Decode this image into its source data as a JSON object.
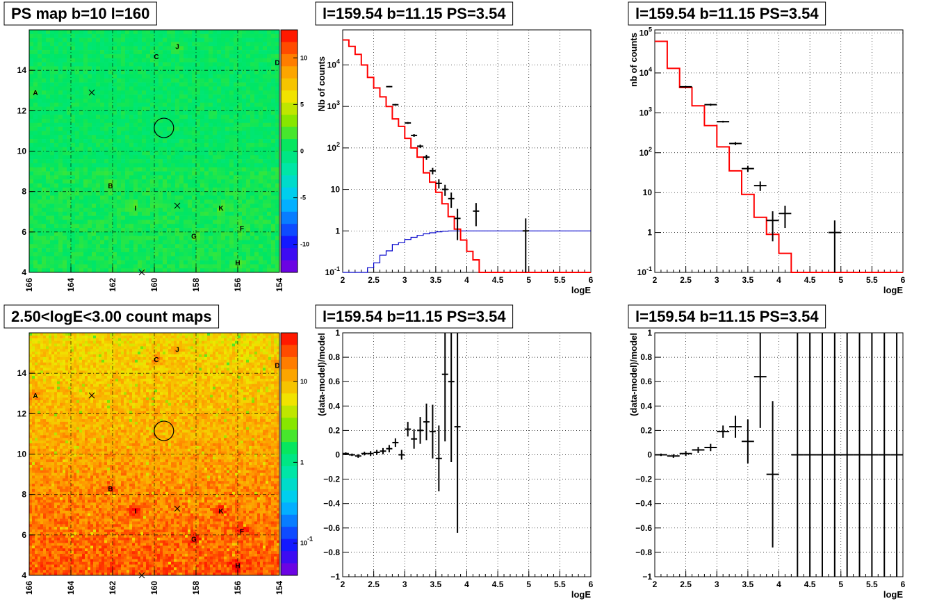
{
  "colors": {
    "data": "#000000",
    "model": "#ff0000",
    "component": "#0000cc",
    "grid": "#000000"
  },
  "chart_data": [
    {
      "id": "ps-map",
      "type": "heatmap",
      "title": "PS map b=10 l=160",
      "xlim": [
        166,
        154
      ],
      "ylim": [
        4,
        16
      ],
      "x_ticks": [
        "166",
        "164",
        "162",
        "160",
        "158",
        "156",
        "154"
      ],
      "y_ticks": [
        "4",
        "6",
        "8",
        "10",
        "12",
        "14"
      ],
      "z_scale": "linear",
      "zlim": [
        -13,
        13
      ],
      "z_ticks": [
        "10",
        "5",
        "0",
        "-5",
        "-10"
      ],
      "sources": [
        {
          "label": "A",
          "l": 165.7,
          "b": 12.9
        },
        {
          "label": "B",
          "l": 162.1,
          "b": 8.3
        },
        {
          "label": "C",
          "l": 159.9,
          "b": 14.7
        },
        {
          "label": "D",
          "l": 154.1,
          "b": 14.4
        },
        {
          "label": "F",
          "l": 155.8,
          "b": 6.2
        },
        {
          "label": "G",
          "l": 158.1,
          "b": 5.8
        },
        {
          "label": "H",
          "l": 156.0,
          "b": 4.5
        },
        {
          "label": "I",
          "l": 160.9,
          "b": 7.2
        },
        {
          "label": "J",
          "l": 158.9,
          "b": 15.2
        },
        {
          "label": "K",
          "l": 156.8,
          "b": 7.2
        }
      ],
      "crosses": [
        {
          "l": 163.0,
          "b": 12.9
        },
        {
          "l": 158.9,
          "b": 7.3
        },
        {
          "l": 160.6,
          "b": 4.0
        }
      ],
      "circle": {
        "l": 159.54,
        "b": 11.15
      }
    },
    {
      "id": "spectrum-1",
      "type": "line",
      "title": "l=159.54 b=11.15 PS=3.54",
      "xlabel": "logE",
      "ylabel": "Nb of counts",
      "y_scale": "log",
      "xlim": [
        2,
        6
      ],
      "ylim": [
        0.1,
        70000
      ],
      "x_ticks": [
        "2",
        "2.5",
        "3",
        "3.5",
        "4",
        "4.5",
        "5",
        "5.5",
        "6"
      ],
      "y_ticks": [
        "10^{-1}",
        "1",
        "10",
        "10^{2}",
        "10^{3}",
        "10^{4}"
      ],
      "bin_edges": [
        2.0,
        2.1,
        2.2,
        2.3,
        2.4,
        2.5,
        2.6,
        2.7,
        2.8,
        2.9,
        3.0,
        3.1,
        3.2,
        3.3,
        3.4,
        3.5,
        3.6,
        3.7,
        3.8,
        3.9,
        4.0,
        4.1,
        4.2,
        4.3,
        4.4,
        4.5,
        4.6,
        4.7,
        4.8,
        4.9,
        5.0,
        5.1,
        5.2,
        5.3,
        5.4,
        5.5,
        5.6,
        5.7,
        5.8,
        5.9,
        6.0
      ],
      "model": [
        40000,
        28000,
        18000,
        10000,
        5000,
        2800,
        1700,
        1000,
        500,
        330,
        170,
        100,
        60,
        25,
        15,
        8.5,
        4.5,
        2.2,
        1.1,
        0.6,
        0.32,
        0.2,
        0.1,
        0.1,
        0.1,
        0.1,
        0.1,
        0.1,
        0.1,
        0.1,
        0.1,
        0.1,
        0.1,
        0.1,
        0.1,
        0.1,
        0.1,
        0.1,
        0.1,
        0.1
      ],
      "component": [
        0.1,
        0.1,
        0.1,
        0.1,
        0.13,
        0.17,
        0.26,
        0.33,
        0.47,
        0.52,
        0.62,
        0.7,
        0.78,
        0.85,
        0.9,
        0.95,
        0.98,
        1.0,
        1.0,
        1.0,
        1.0,
        1.0,
        1.0,
        1.0,
        1.0,
        1.0,
        1.0,
        1.0,
        1.0,
        1.0,
        1.0,
        1.0,
        1.0,
        1.0,
        1.0,
        1.0,
        1.0,
        1.0,
        1.0,
        1.0
      ],
      "data_points": [
        {
          "x": 2.75,
          "y": 3000,
          "lo": 2900,
          "hi": 3100
        },
        {
          "x": 2.85,
          "y": 1100,
          "lo": 1050,
          "hi": 1150
        },
        {
          "x": 3.05,
          "y": 400,
          "lo": 380,
          "hi": 420
        },
        {
          "x": 3.15,
          "y": 200,
          "lo": 185,
          "hi": 215
        },
        {
          "x": 3.25,
          "y": 110,
          "lo": 100,
          "hi": 120
        },
        {
          "x": 3.35,
          "y": 60,
          "lo": 52,
          "hi": 68
        },
        {
          "x": 3.45,
          "y": 28,
          "lo": 23,
          "hi": 33
        },
        {
          "x": 3.55,
          "y": 14,
          "lo": 10.5,
          "hi": 17.5
        },
        {
          "x": 3.65,
          "y": 10,
          "lo": 7,
          "hi": 13
        },
        {
          "x": 3.75,
          "y": 6,
          "lo": 3.6,
          "hi": 8.4
        },
        {
          "x": 3.85,
          "y": 2,
          "lo": 0.6,
          "hi": 3.4
        },
        {
          "x": 4.15,
          "y": 3,
          "lo": 1.3,
          "hi": 4.7
        },
        {
          "x": 4.95,
          "y": 1,
          "lo": 0.1,
          "hi": 2
        }
      ]
    },
    {
      "id": "spectrum-2",
      "type": "line",
      "title": "l=159.54 b=11.15 PS=3.54",
      "xlabel": "logE",
      "ylabel": "nb of counts",
      "y_scale": "log",
      "xlim": [
        2,
        6
      ],
      "ylim": [
        0.1,
        120000
      ],
      "x_ticks": [
        "2",
        "2.5",
        "3",
        "3.5",
        "4",
        "4.5",
        "5",
        "5.5",
        "6"
      ],
      "y_ticks": [
        "10^{-1}",
        "1",
        "10",
        "10^{2}",
        "10^{3}",
        "10^{4}",
        "10^{5}"
      ],
      "bin_edges": [
        2.0,
        2.2,
        2.4,
        2.6,
        2.8,
        3.0,
        3.2,
        3.4,
        3.6,
        3.8,
        4.0,
        4.2,
        4.4,
        4.6,
        4.8,
        5.0,
        5.2,
        5.4,
        5.6,
        5.8,
        6.0
      ],
      "model": [
        62000,
        13000,
        4300,
        1500,
        480,
        140,
        35,
        9,
        2.4,
        0.9,
        0.3,
        0.1,
        0.1,
        0.1,
        0.1,
        0.1,
        0.1,
        0.1,
        0.1,
        0.1
      ],
      "data_points": [
        {
          "x": 2.5,
          "y": 4500,
          "lo": 4300,
          "hi": 4700
        },
        {
          "x": 2.9,
          "y": 1600,
          "lo": 1500,
          "hi": 1700
        },
        {
          "x": 3.1,
          "y": 600,
          "lo": 570,
          "hi": 630
        },
        {
          "x": 3.3,
          "y": 170,
          "lo": 155,
          "hi": 185
        },
        {
          "x": 3.5,
          "y": 40,
          "lo": 33,
          "hi": 47
        },
        {
          "x": 3.7,
          "y": 15,
          "lo": 11,
          "hi": 19
        },
        {
          "x": 3.9,
          "y": 2,
          "lo": 0.6,
          "hi": 3.4
        },
        {
          "x": 4.1,
          "y": 3,
          "lo": 1.3,
          "hi": 4.7
        },
        {
          "x": 4.9,
          "y": 1,
          "lo": 0.1,
          "hi": 2
        }
      ]
    },
    {
      "id": "count-map",
      "type": "heatmap",
      "title": "2.50<logE<3.00 count maps",
      "xlim": [
        166,
        154
      ],
      "ylim": [
        4,
        16
      ],
      "x_ticks": [
        "166",
        "164",
        "162",
        "160",
        "158",
        "156",
        "154"
      ],
      "y_ticks": [
        "4",
        "6",
        "8",
        "10",
        "12",
        "14"
      ],
      "z_scale": "log",
      "zlim": [
        0.04,
        40
      ],
      "z_ticks": [
        "10",
        "1",
        "10^{-1}"
      ],
      "sources": [
        {
          "label": "A",
          "l": 165.7,
          "b": 12.9
        },
        {
          "label": "B",
          "l": 162.1,
          "b": 8.3
        },
        {
          "label": "C",
          "l": 159.9,
          "b": 14.7
        },
        {
          "label": "D",
          "l": 154.1,
          "b": 14.4
        },
        {
          "label": "F",
          "l": 155.8,
          "b": 6.2
        },
        {
          "label": "G",
          "l": 158.1,
          "b": 5.8
        },
        {
          "label": "H",
          "l": 156.0,
          "b": 4.5
        },
        {
          "label": "I",
          "l": 160.9,
          "b": 7.2
        },
        {
          "label": "J",
          "l": 158.9,
          "b": 15.2
        },
        {
          "label": "K",
          "l": 156.8,
          "b": 7.2
        }
      ],
      "crosses": [
        {
          "l": 163.0,
          "b": 12.9
        },
        {
          "l": 158.9,
          "b": 7.3
        },
        {
          "l": 160.6,
          "b": 4.0
        }
      ],
      "circle": {
        "l": 159.54,
        "b": 11.15
      }
    },
    {
      "id": "residuals-1",
      "type": "scatter",
      "title": "l=159.54 b=11.15 PS=3.54",
      "xlabel": "logE",
      "ylabel": "(data-model)/model",
      "xlim": [
        2,
        6
      ],
      "ylim": [
        -1,
        1
      ],
      "x_ticks": [
        "2",
        "2.5",
        "3",
        "3.5",
        "4",
        "4.5",
        "5",
        "5.5",
        "6"
      ],
      "y_ticks": [
        "−1",
        "−0.8",
        "−0.6",
        "−0.4",
        "−0.2",
        "0",
        "0.2",
        "0.4",
        "0.6",
        "0.8",
        "1"
      ],
      "xbin": 0.1,
      "points": [
        {
          "x": 2.05,
          "y": 0.01,
          "e": 0.01
        },
        {
          "x": 2.15,
          "y": 0.0,
          "e": 0.01
        },
        {
          "x": 2.25,
          "y": -0.01,
          "e": 0.015
        },
        {
          "x": 2.35,
          "y": 0.01,
          "e": 0.015
        },
        {
          "x": 2.45,
          "y": 0.01,
          "e": 0.02
        },
        {
          "x": 2.55,
          "y": 0.02,
          "e": 0.02
        },
        {
          "x": 2.65,
          "y": 0.03,
          "e": 0.025
        },
        {
          "x": 2.75,
          "y": 0.05,
          "e": 0.03
        },
        {
          "x": 2.85,
          "y": 0.1,
          "e": 0.035
        },
        {
          "x": 2.95,
          "y": 0.0,
          "e": 0.04
        },
        {
          "x": 3.05,
          "y": 0.21,
          "e": 0.06
        },
        {
          "x": 3.15,
          "y": 0.13,
          "e": 0.08
        },
        {
          "x": 3.25,
          "y": 0.2,
          "e": 0.11
        },
        {
          "x": 3.35,
          "y": 0.27,
          "e": 0.15
        },
        {
          "x": 3.45,
          "y": 0.19,
          "e": 0.22
        },
        {
          "x": 3.55,
          "y": -0.03,
          "e": 0.27
        },
        {
          "x": 3.65,
          "y": 0.66,
          "e": 0.55
        },
        {
          "x": 3.75,
          "y": 0.6,
          "e": 0.66
        },
        {
          "x": 3.85,
          "y": 0.23,
          "e": 0.87
        }
      ]
    },
    {
      "id": "residuals-2",
      "type": "scatter",
      "title": "l=159.54 b=11.15 PS=3.54",
      "xlabel": "logE",
      "ylabel": "(data-model)/model",
      "xlim": [
        2,
        6
      ],
      "ylim": [
        -1,
        1
      ],
      "x_ticks": [
        "2",
        "2.5",
        "3",
        "3.5",
        "4",
        "4.5",
        "5",
        "5.5",
        "6"
      ],
      "y_ticks": [
        "−1",
        "−0.8",
        "−0.6",
        "−0.4",
        "−0.2",
        "0",
        "0.2",
        "0.4",
        "0.6",
        "0.8",
        "1"
      ],
      "xbin": 0.2,
      "points": [
        {
          "x": 2.1,
          "y": 0.0,
          "e": 0.01
        },
        {
          "x": 2.3,
          "y": -0.01,
          "e": 0.015
        },
        {
          "x": 2.5,
          "y": 0.01,
          "e": 0.02
        },
        {
          "x": 2.7,
          "y": 0.04,
          "e": 0.025
        },
        {
          "x": 2.9,
          "y": 0.06,
          "e": 0.03
        },
        {
          "x": 3.1,
          "y": 0.19,
          "e": 0.05
        },
        {
          "x": 3.3,
          "y": 0.23,
          "e": 0.09
        },
        {
          "x": 3.5,
          "y": 0.11,
          "e": 0.18
        },
        {
          "x": 3.7,
          "y": 0.64,
          "e": 0.42
        },
        {
          "x": 3.9,
          "y": -0.16,
          "e": 0.6
        },
        {
          "x": 4.3,
          "y": 0.0,
          "e": 5
        },
        {
          "x": 4.5,
          "y": 0.0,
          "e": 5
        },
        {
          "x": 4.7,
          "y": 0.0,
          "e": 5
        },
        {
          "x": 4.9,
          "y": 0.0,
          "e": 5
        },
        {
          "x": 5.1,
          "y": 0.0,
          "e": 5
        },
        {
          "x": 5.3,
          "y": 0.0,
          "e": 5
        },
        {
          "x": 5.5,
          "y": 0.0,
          "e": 5
        },
        {
          "x": 5.7,
          "y": 0.0,
          "e": 5
        },
        {
          "x": 5.9,
          "y": 0.0,
          "e": 5
        }
      ]
    }
  ]
}
